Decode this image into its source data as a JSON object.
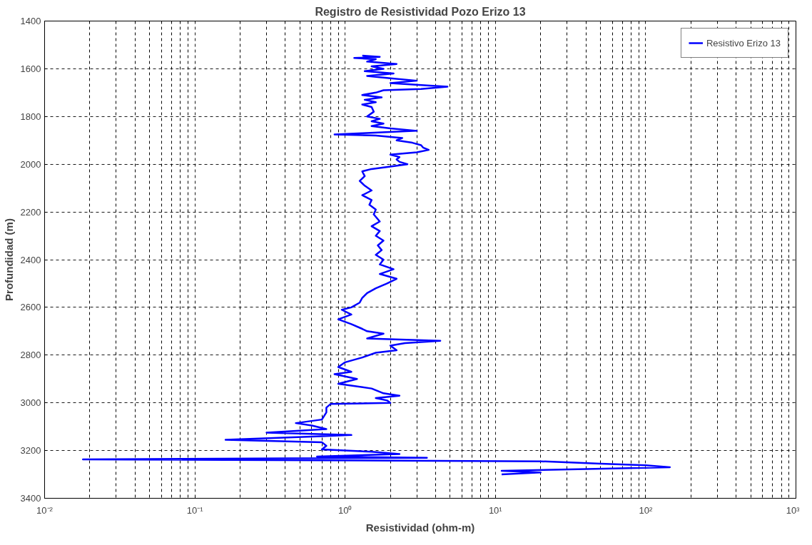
{
  "chart_data": {
    "type": "line",
    "title": "Registro de Resistividad Pozo Erizo 13",
    "xlabel": "Resistividad (ohm-m)",
    "ylabel": "Profundidad (m)",
    "log": "x",
    "grid": true,
    "legend": "top right",
    "marker": "none",
    "line_style": "solid",
    "xlim": [
      0.01,
      1000
    ],
    "xticks": [
      {
        "value": 0.01,
        "label": "10⁻²"
      },
      {
        "value": 0.1,
        "label": "10⁻¹"
      },
      {
        "value": 1,
        "label": "10⁰"
      },
      {
        "value": 10,
        "label": "10¹"
      },
      {
        "value": 100,
        "label": "10²"
      },
      {
        "value": 1000,
        "label": "10³"
      }
    ],
    "ylim": [
      3400,
      1400
    ],
    "yticks": [
      1400,
      1600,
      1800,
      2000,
      2200,
      2400,
      2600,
      2800,
      3000,
      3200,
      3400
    ],
    "series": [
      {
        "name": "Resistivo Erizo 13",
        "color": "#0000ff",
        "x": [
          1.3,
          1.7,
          1.15,
          1.6,
          1.4,
          2.2,
          1.5,
          1.8,
          1.35,
          2.1,
          1.4,
          2.0,
          3.0,
          2.0,
          3.5,
          4.8,
          3.2,
          1.8,
          1.6,
          1.3,
          1.75,
          1.35,
          1.6,
          1.3,
          1.5,
          1.55,
          1.4,
          1.7,
          1.5,
          1.8,
          1.5,
          2.0,
          3.0,
          1.3,
          0.85,
          1.6,
          2.4,
          2.2,
          2.8,
          3.2,
          3.3,
          3.6,
          3.0,
          2.0,
          2.3,
          2.2,
          2.3,
          2.6,
          2.0,
          1.5,
          1.3,
          1.35,
          1.25,
          1.35,
          1.5,
          1.3,
          1.5,
          1.45,
          1.6,
          1.55,
          1.7,
          1.5,
          1.7,
          1.6,
          1.8,
          1.65,
          1.75,
          1.6,
          1.8,
          1.7,
          2.1,
          1.7,
          2.2,
          1.9,
          1.6,
          1.4,
          1.3,
          1.25,
          1.1,
          0.95,
          1.1,
          0.9,
          1.1,
          1.3,
          1.4,
          1.8,
          1.4,
          4.3,
          2.5,
          2.0,
          2.2,
          1.6,
          1.3,
          1.0,
          0.9,
          1.1,
          0.85,
          1.2,
          0.9,
          1.5,
          1.8,
          2.3,
          1.6,
          1.9,
          2.0,
          0.8,
          0.75,
          0.75,
          0.7,
          0.47,
          0.6,
          0.75,
          0.3,
          1.1,
          0.7,
          0.16,
          0.7,
          0.75,
          0.7,
          1.5,
          2.3,
          0.65,
          3.5,
          0.018,
          20,
          50,
          100,
          145,
          60,
          11,
          20,
          11
        ],
        "values": [
          1545,
          1550,
          1555,
          1560,
          1570,
          1580,
          1590,
          1600,
          1610,
          1620,
          1630,
          1640,
          1650,
          1660,
          1670,
          1675,
          1685,
          1690,
          1700,
          1710,
          1720,
          1730,
          1740,
          1750,
          1760,
          1780,
          1800,
          1810,
          1820,
          1830,
          1840,
          1850,
          1860,
          1870,
          1875,
          1880,
          1890,
          1900,
          1910,
          1920,
          1930,
          1940,
          1950,
          1960,
          1970,
          1980,
          1990,
          2000,
          2010,
          2020,
          2030,
          2050,
          2070,
          2090,
          2110,
          2130,
          2150,
          2170,
          2190,
          2210,
          2240,
          2260,
          2280,
          2300,
          2320,
          2340,
          2360,
          2380,
          2400,
          2420,
          2440,
          2460,
          2480,
          2500,
          2520,
          2540,
          2560,
          2580,
          2600,
          2610,
          2630,
          2650,
          2670,
          2690,
          2700,
          2710,
          2730,
          2740,
          2750,
          2760,
          2780,
          2790,
          2810,
          2830,
          2850,
          2870,
          2880,
          2900,
          2920,
          2940,
          2960,
          2970,
          2980,
          2990,
          3000,
          3005,
          3020,
          3040,
          3070,
          3085,
          3095,
          3110,
          3125,
          3135,
          3140,
          3155,
          3165,
          3180,
          3195,
          3205,
          3215,
          3225,
          3230,
          3237,
          3245,
          3255,
          3262,
          3270,
          3275,
          3285,
          3292,
          3300
        ]
      }
    ]
  }
}
